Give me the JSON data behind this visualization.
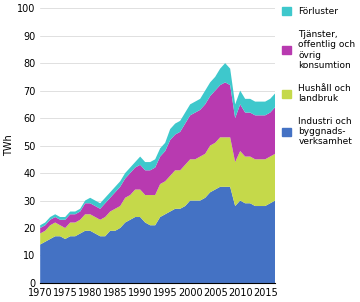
{
  "years": [
    1970,
    1971,
    1972,
    1973,
    1974,
    1975,
    1976,
    1977,
    1978,
    1979,
    1980,
    1981,
    1982,
    1983,
    1984,
    1985,
    1986,
    1987,
    1988,
    1989,
    1990,
    1991,
    1992,
    1993,
    1994,
    1995,
    1996,
    1997,
    1998,
    1999,
    2000,
    2001,
    2002,
    2003,
    2004,
    2005,
    2006,
    2007,
    2008,
    2009,
    2010,
    2011,
    2012,
    2013,
    2014,
    2015,
    2016,
    2017
  ],
  "industri": [
    14,
    15,
    16,
    17,
    17,
    16,
    17,
    17,
    18,
    19,
    19,
    18,
    17,
    17,
    19,
    19,
    20,
    22,
    23,
    24,
    24,
    22,
    21,
    21,
    24,
    25,
    26,
    27,
    27,
    28,
    30,
    30,
    30,
    31,
    33,
    34,
    35,
    35,
    35,
    28,
    30,
    29,
    29,
    28,
    28,
    28,
    29,
    30
  ],
  "hushall": [
    4,
    4,
    5,
    5,
    4,
    4,
    5,
    5,
    5,
    6,
    6,
    6,
    6,
    7,
    7,
    8,
    8,
    9,
    9,
    10,
    10,
    10,
    11,
    11,
    12,
    12,
    13,
    14,
    14,
    15,
    15,
    15,
    16,
    16,
    17,
    17,
    18,
    18,
    18,
    16,
    18,
    17,
    17,
    17,
    17,
    17,
    17,
    17
  ],
  "tjanster": [
    2,
    2,
    2,
    2,
    2,
    3,
    3,
    3,
    3,
    4,
    4,
    4,
    4,
    5,
    5,
    6,
    7,
    7,
    8,
    8,
    9,
    9,
    9,
    10,
    10,
    11,
    13,
    13,
    14,
    15,
    16,
    17,
    17,
    18,
    18,
    19,
    19,
    20,
    19,
    16,
    17,
    16,
    16,
    16,
    16,
    16,
    16,
    17
  ],
  "forluster": [
    1,
    1,
    1,
    1,
    1,
    1,
    1,
    1,
    1,
    1,
    2,
    2,
    2,
    2,
    2,
    2,
    2,
    2,
    2,
    2,
    3,
    3,
    3,
    3,
    3,
    3,
    4,
    4,
    4,
    4,
    4,
    4,
    4,
    5,
    5,
    5,
    6,
    7,
    6,
    5,
    5,
    5,
    5,
    5,
    5,
    5,
    5,
    5
  ],
  "color_industri": "#4472c4",
  "color_hushall": "#c5d94a",
  "color_tjanster": "#b83ab0",
  "color_forluster": "#3ec8cc",
  "ylabel": "TWh",
  "ylim": [
    0,
    100
  ],
  "xlim": [
    1970,
    2017
  ],
  "xticks": [
    1970,
    1975,
    1980,
    1985,
    1990,
    1995,
    2000,
    2005,
    2010,
    2015
  ],
  "yticks": [
    0,
    10,
    20,
    30,
    40,
    50,
    60,
    70,
    80,
    90,
    100
  ],
  "legend_forluster": "Förluster",
  "legend_tjanster": "Tjänster,\noffentlig och\növrig\nkonsumtion",
  "legend_hushall": "Hushåll och\nlandbruk",
  "legend_industri": "Industri och\nbyggnads-\nverksamhet"
}
